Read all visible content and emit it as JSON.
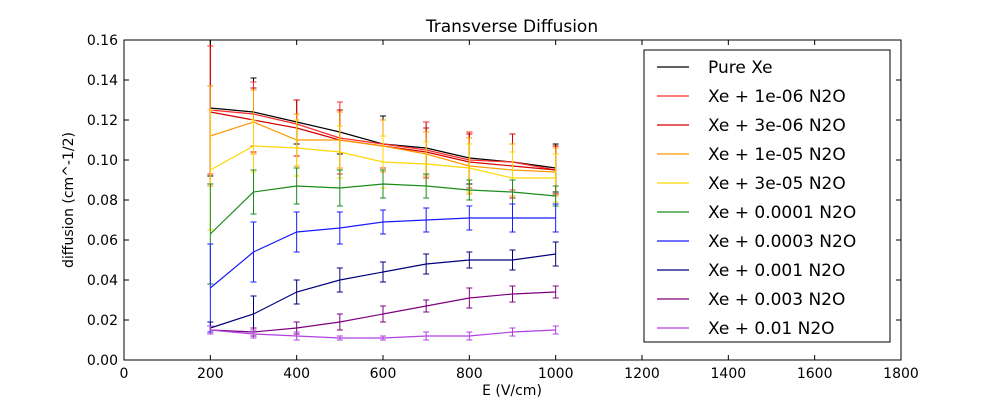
{
  "chart_data": {
    "type": "line",
    "title": "Transverse Diffusion",
    "xlabel": "E (V/cm)",
    "ylabel": "diffusion (cm^-1/2)",
    "xlim": [
      0,
      1800
    ],
    "ylim": [
      0,
      0.16
    ],
    "xticks": [
      0,
      200,
      400,
      600,
      800,
      1000,
      1200,
      1400,
      1600,
      1800
    ],
    "xtick_labels": [
      "0",
      "200",
      "400",
      "600",
      "800",
      "1000",
      "1200",
      "1400",
      "1600",
      "1800"
    ],
    "yticks": [
      0,
      0.02,
      0.04,
      0.06,
      0.08,
      0.1,
      0.12,
      0.14,
      0.16
    ],
    "ytick_labels": [
      "0.00",
      "0.02",
      "0.04",
      "0.06",
      "0.08",
      "0.10",
      "0.12",
      "0.14",
      "0.16"
    ],
    "grid": false,
    "legend_position": "right",
    "x": [
      200,
      300,
      400,
      500,
      600,
      700,
      800,
      900,
      1000
    ],
    "series": [
      {
        "name": "Pure Xe",
        "color": "#000000",
        "values": [
          0.126,
          0.124,
          0.119,
          0.114,
          0.108,
          0.106,
          0.101,
          0.099,
          0.096
        ],
        "errors": [
          0.034,
          0.017,
          0.011,
          0.011,
          0.014,
          0.013,
          0.013,
          0.014,
          0.012
        ]
      },
      {
        "name": "Xe + 1e-06 N2O",
        "color": "#ff2a2a",
        "values": [
          0.125,
          0.123,
          0.118,
          0.111,
          0.108,
          0.105,
          0.1,
          0.099,
          0.095
        ],
        "errors": [
          0.032,
          0.016,
          0.012,
          0.018,
          0.012,
          0.014,
          0.014,
          0.014,
          0.012
        ]
      },
      {
        "name": "Xe + 3e-06 N2O",
        "color": "#d40000",
        "values": [
          0.124,
          0.12,
          0.116,
          0.11,
          0.107,
          0.104,
          0.099,
          0.097,
          0.095
        ],
        "errors": [
          0.036,
          0.016,
          0.014,
          0.015,
          0.013,
          0.012,
          0.014,
          0.016,
          0.012
        ]
      },
      {
        "name": "Xe + 1e-05 N2O",
        "color": "#ff9900",
        "values": [
          0.112,
          0.119,
          0.11,
          0.11,
          0.107,
          0.103,
          0.097,
          0.095,
          0.094
        ],
        "errors": [
          0.025,
          0.016,
          0.013,
          0.014,
          0.013,
          0.011,
          0.014,
          0.013,
          0.012
        ]
      },
      {
        "name": "Xe + 3e-05 N2O",
        "color": "#ffd700",
        "values": [
          0.095,
          0.107,
          0.106,
          0.104,
          0.099,
          0.098,
          0.096,
          0.091,
          0.091
        ],
        "errors": [
          0.03,
          0.013,
          0.014,
          0.013,
          0.013,
          0.011,
          0.012,
          0.013,
          0.012
        ]
      },
      {
        "name": "Xe + 0.0001 N2O",
        "color": "#1a8c1a",
        "values": [
          0.063,
          0.084,
          0.087,
          0.086,
          0.088,
          0.087,
          0.085,
          0.084,
          0.082
        ],
        "errors": [
          0.025,
          0.011,
          0.009,
          0.009,
          0.007,
          0.006,
          0.005,
          0.006,
          0.005
        ]
      },
      {
        "name": "Xe + 0.0003 N2O",
        "color": "#1a1aff",
        "values": [
          0.036,
          0.054,
          0.064,
          0.066,
          0.069,
          0.07,
          0.071,
          0.071,
          0.071
        ],
        "errors": [
          0.022,
          0.015,
          0.01,
          0.008,
          0.006,
          0.006,
          0.006,
          0.007,
          0.007
        ]
      },
      {
        "name": "Xe + 0.001 N2O",
        "color": "#00007f",
        "values": [
          0.016,
          0.023,
          0.034,
          0.04,
          0.044,
          0.048,
          0.05,
          0.05,
          0.053
        ],
        "errors": [
          0.003,
          0.009,
          0.006,
          0.006,
          0.005,
          0.005,
          0.004,
          0.005,
          0.006
        ]
      },
      {
        "name": "Xe + 0.003 N2O",
        "color": "#7f007f",
        "values": [
          0.015,
          0.014,
          0.016,
          0.019,
          0.023,
          0.027,
          0.031,
          0.033,
          0.034
        ],
        "errors": [
          0.002,
          0.002,
          0.003,
          0.004,
          0.004,
          0.003,
          0.005,
          0.004,
          0.003
        ]
      },
      {
        "name": "Xe + 0.01 N2O",
        "color": "#b040e0",
        "values": [
          0.015,
          0.013,
          0.012,
          0.011,
          0.011,
          0.012,
          0.012,
          0.014,
          0.015
        ],
        "errors": [
          0.002,
          0.002,
          0.002,
          0.001,
          0.001,
          0.002,
          0.002,
          0.002,
          0.002
        ]
      }
    ]
  }
}
